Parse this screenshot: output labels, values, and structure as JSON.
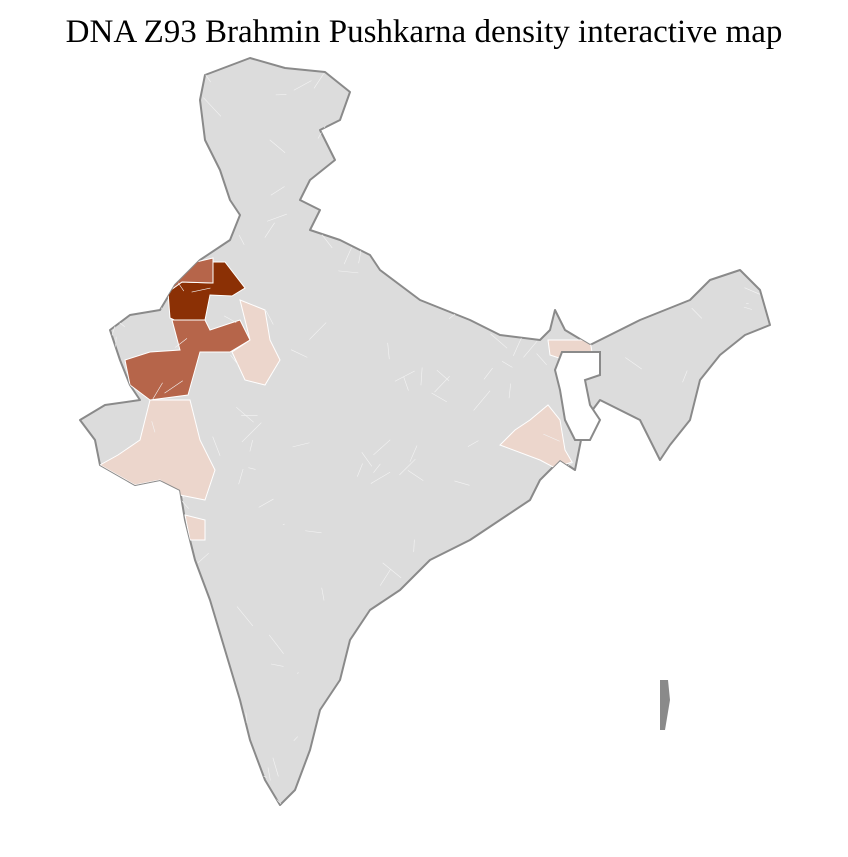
{
  "title": "DNA Z93 Brahmin Pushkarna density interactive map",
  "colors": {
    "no_data": "#dcdcdc",
    "border": "#8a8a8a",
    "density_high": "#8b3005",
    "density_medium": "#b6654a",
    "density_low": "#ecd6cc"
  },
  "regions": [
    {
      "area": "north-west Rajasthan (Bikaner/Ganganagar)",
      "density": "high"
    },
    {
      "area": "western Rajasthan",
      "density": "medium"
    },
    {
      "area": "eastern Rajasthan / Gujarat / Maharashtra coast",
      "density": "low"
    },
    {
      "area": "West Bengal",
      "density": "low"
    }
  ]
}
